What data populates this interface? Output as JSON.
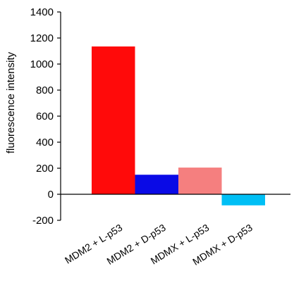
{
  "chart_data": {
    "type": "bar",
    "categories": [
      "MDM2 + L-p53",
      "MDM2 + D-p53",
      "MDMX + L-p53",
      "MDMX + D-p53"
    ],
    "values": [
      1135,
      150,
      205,
      -85
    ],
    "colors": [
      "#ff0a0a",
      "#0a0ae6",
      "#f57f7f",
      "#00bff5"
    ],
    "ylabel": "fluorescence intensity",
    "ylim": [
      -200,
      1400
    ],
    "yticks": [
      -200,
      0,
      200,
      400,
      600,
      800,
      1000,
      1200,
      1400
    ],
    "grid": false,
    "legend": "none"
  }
}
